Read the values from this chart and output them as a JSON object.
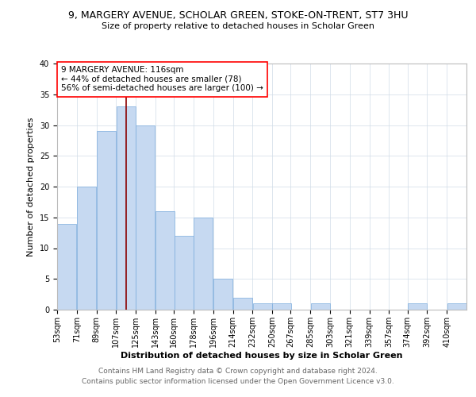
{
  "title": "9, MARGERY AVENUE, SCHOLAR GREEN, STOKE-ON-TRENT, ST7 3HU",
  "subtitle": "Size of property relative to detached houses in Scholar Green",
  "xlabel": "Distribution of detached houses by size in Scholar Green",
  "ylabel": "Number of detached properties",
  "footer1": "Contains HM Land Registry data © Crown copyright and database right 2024.",
  "footer2": "Contains public sector information licensed under the Open Government Licence v3.0.",
  "annotation_line1": "9 MARGERY AVENUE: 116sqm",
  "annotation_line2": "← 44% of detached houses are smaller (78)",
  "annotation_line3": "56% of semi-detached houses are larger (100) →",
  "bins": [
    53,
    71,
    89,
    107,
    125,
    143,
    160,
    178,
    196,
    214,
    232,
    250,
    267,
    285,
    303,
    321,
    339,
    357,
    374,
    392,
    410
  ],
  "counts": [
    14,
    20,
    29,
    33,
    30,
    16,
    12,
    15,
    5,
    2,
    1,
    1,
    0,
    1,
    0,
    0,
    0,
    0,
    1,
    0,
    1
  ],
  "bar_color": "#c6d9f1",
  "bar_edge_color": "#7aabdc",
  "vline_color": "#8b0000",
  "vline_x": 116,
  "ylim": [
    0,
    40
  ],
  "yticks": [
    0,
    5,
    10,
    15,
    20,
    25,
    30,
    35,
    40
  ],
  "tick_labels": [
    "53sqm",
    "71sqm",
    "89sqm",
    "107sqm",
    "125sqm",
    "143sqm",
    "160sqm",
    "178sqm",
    "196sqm",
    "214sqm",
    "232sqm",
    "250sqm",
    "267sqm",
    "285sqm",
    "303sqm",
    "321sqm",
    "339sqm",
    "357sqm",
    "374sqm",
    "392sqm",
    "410sqm"
  ],
  "title_fontsize": 9,
  "subtitle_fontsize": 8,
  "xlabel_fontsize": 8,
  "ylabel_fontsize": 8,
  "tick_fontsize": 7,
  "footer_fontsize": 6.5,
  "annotation_fontsize": 7.5,
  "grid_color": "#d0dce8"
}
